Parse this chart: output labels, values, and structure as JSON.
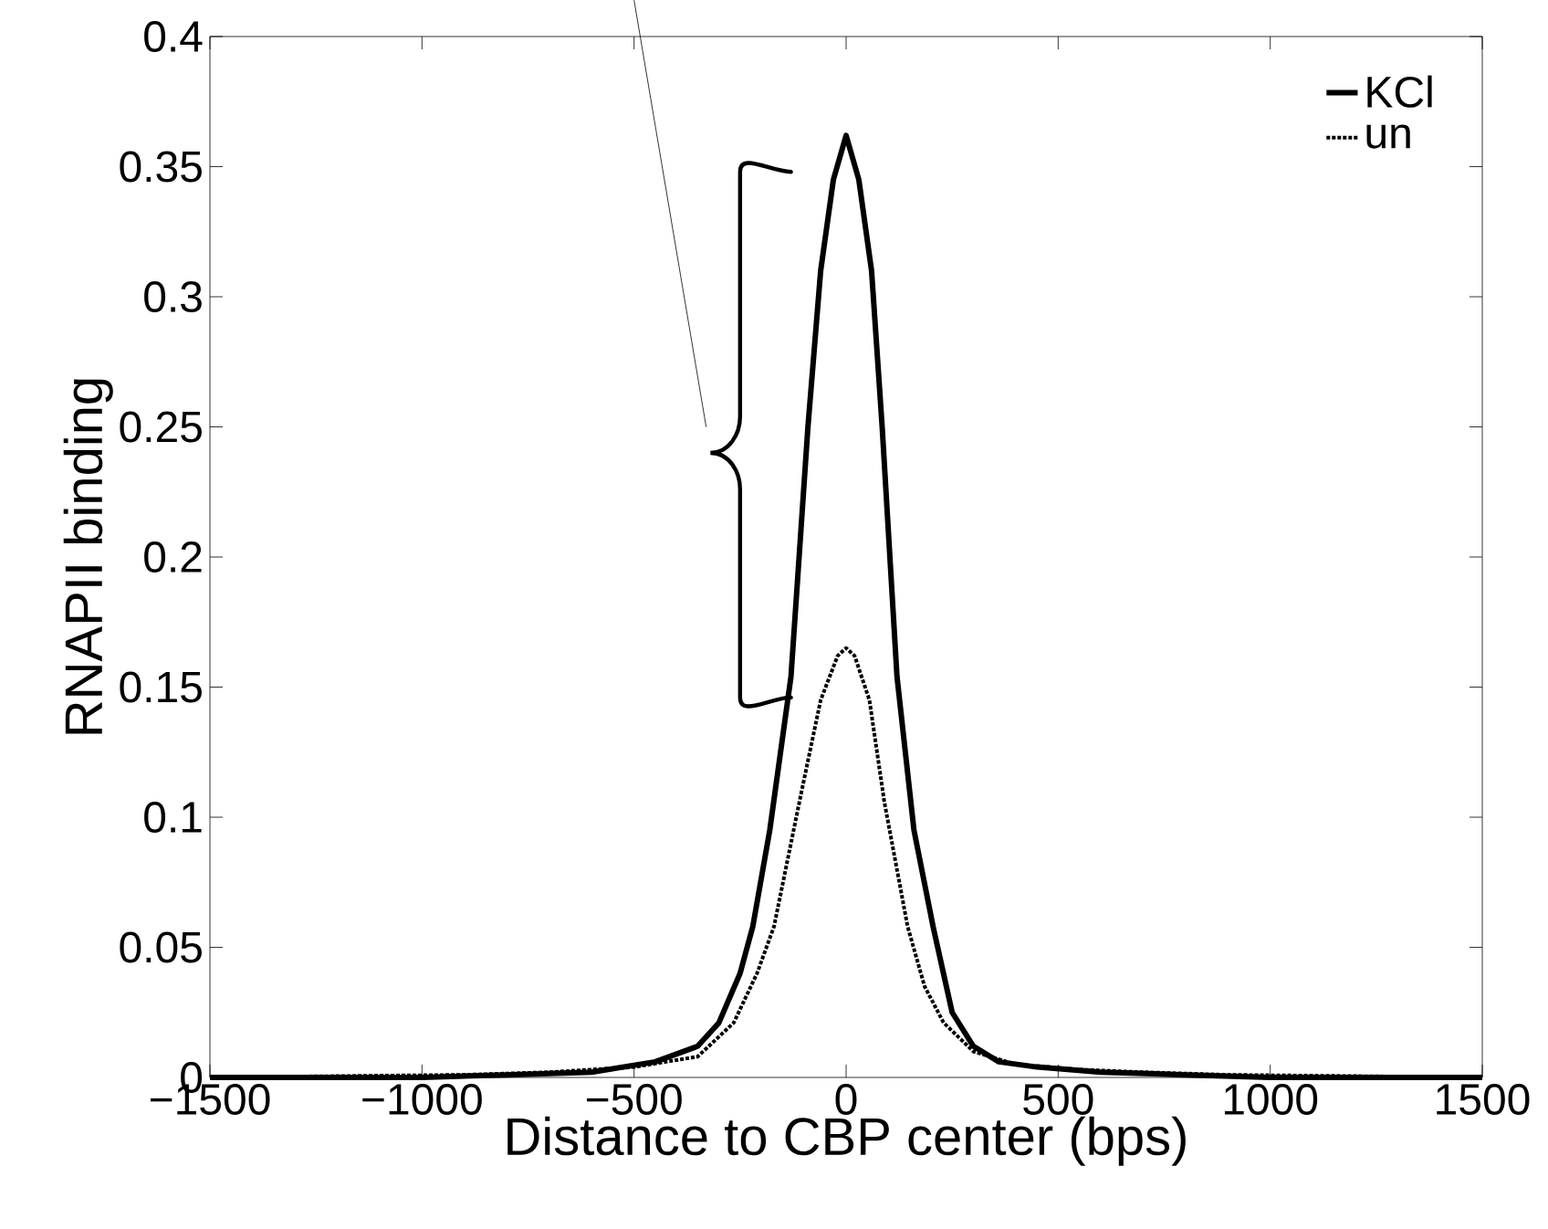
{
  "chart_data": {
    "type": "line",
    "xlabel": "Distance to CBP center (bps)",
    "ylabel": "RNAPII binding",
    "xlim": [
      -1500,
      1500
    ],
    "ylim": [
      0,
      0.4
    ],
    "xticks": [
      {
        "value": -1500,
        "label": "−1500"
      },
      {
        "value": -1000,
        "label": "−1000"
      },
      {
        "value": -500,
        "label": "−500"
      },
      0,
      500,
      1000,
      1500
    ],
    "yticks": [
      0,
      0.05,
      0.1,
      0.15,
      0.2,
      0.25,
      0.3,
      0.35,
      0.4
    ],
    "legend": "top right",
    "marker": "none",
    "series": [
      {
        "name": "KCl",
        "color": "#000000",
        "line_style": "solid",
        "x": [
          -1500,
          -1000,
          -800,
          -600,
          -450,
          -350,
          -300,
          -250,
          -220,
          -180,
          -130,
          -90,
          -60,
          -30,
          0,
          30,
          60,
          85,
          120,
          160,
          205,
          250,
          300,
          360,
          450,
          600,
          800,
          1000,
          1500
        ],
        "values": [
          0,
          0,
          0.001,
          0.002,
          0.006,
          0.012,
          0.021,
          0.04,
          0.058,
          0.095,
          0.154,
          0.25,
          0.31,
          0.345,
          0.362,
          0.345,
          0.31,
          0.25,
          0.154,
          0.095,
          0.058,
          0.025,
          0.012,
          0.006,
          0.004,
          0.002,
          0.001,
          0,
          0
        ]
      },
      {
        "name": "un",
        "color": "#000000",
        "line_style": "dotted",
        "x": [
          -1500,
          -900,
          -700,
          -500,
          -350,
          -265,
          -210,
          -170,
          -110,
          -60,
          -20,
          0,
          20,
          55,
          90,
          145,
          185,
          230,
          300,
          400,
          550,
          700,
          900,
          1500
        ],
        "values": [
          0,
          0.001,
          0.002,
          0.004,
          0.008,
          0.021,
          0.04,
          0.058,
          0.106,
          0.145,
          0.162,
          0.165,
          0.162,
          0.145,
          0.106,
          0.058,
          0.035,
          0.021,
          0.01,
          0.005,
          0.003,
          0.002,
          0.001,
          0
        ]
      }
    ]
  }
}
